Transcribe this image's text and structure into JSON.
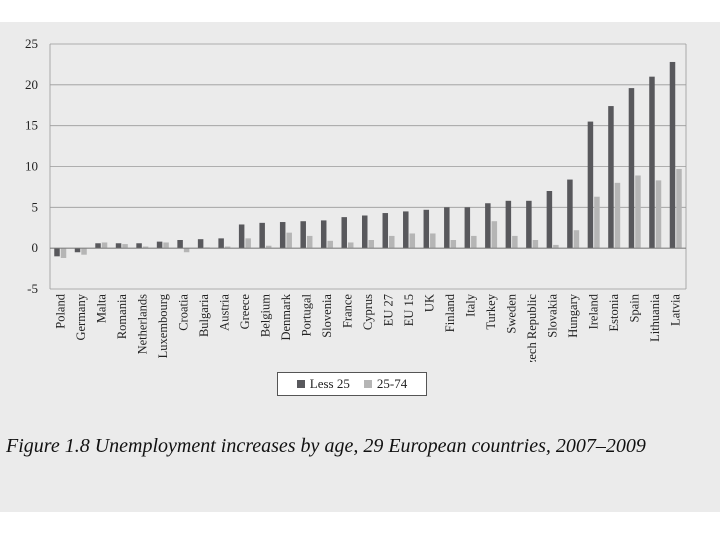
{
  "chart_data": {
    "type": "bar",
    "title": "",
    "xlabel": "",
    "ylabel": "",
    "ylim": [
      -5,
      25
    ],
    "yticks": [
      -5,
      0,
      5,
      10,
      15,
      20,
      25
    ],
    "categories": [
      "Poland",
      "Germany",
      "Malta",
      "Romania",
      "Netherlands",
      "Luxembourg",
      "Croatia",
      "Bulgaria",
      "Austria",
      "Greece",
      "Belgium",
      "Denmark",
      "Portugal",
      "Slovenia",
      "France",
      "Cyprus",
      "EU 27",
      "EU 15",
      "UK",
      "Finland",
      "Italy",
      "Turkey",
      "Sweden",
      "Czech Republic",
      "Slovakia",
      "Hungary",
      "Ireland",
      "Estonia",
      "Spain",
      "Lithuania",
      "Latvia"
    ],
    "series": [
      {
        "name": "Less 25",
        "color": "#58585c",
        "values": [
          -1.0,
          -0.5,
          0.6,
          0.6,
          0.6,
          0.8,
          1.0,
          1.1,
          1.2,
          2.9,
          3.1,
          3.2,
          3.3,
          3.4,
          3.8,
          4.0,
          4.3,
          4.5,
          4.7,
          5.0,
          5.0,
          5.5,
          5.8,
          5.8,
          7.0,
          8.4,
          15.5,
          17.4,
          19.6,
          21.0,
          22.8
        ]
      },
      {
        "name": "25-74",
        "color": "#b5b5b5",
        "values": [
          -1.2,
          -0.8,
          0.7,
          0.5,
          0.2,
          0.7,
          -0.5,
          0.1,
          0.2,
          1.2,
          0.3,
          1.9,
          1.5,
          0.9,
          0.7,
          1.0,
          1.5,
          1.8,
          1.8,
          1.0,
          1.5,
          3.3,
          1.5,
          1.0,
          0.4,
          2.2,
          6.3,
          8.0,
          8.9,
          8.3,
          9.7
        ]
      }
    ],
    "legend_position": "bottom-center"
  },
  "caption": "Figure 1.8  Unemployment increases by age, 29 European countries, 2007–2009"
}
